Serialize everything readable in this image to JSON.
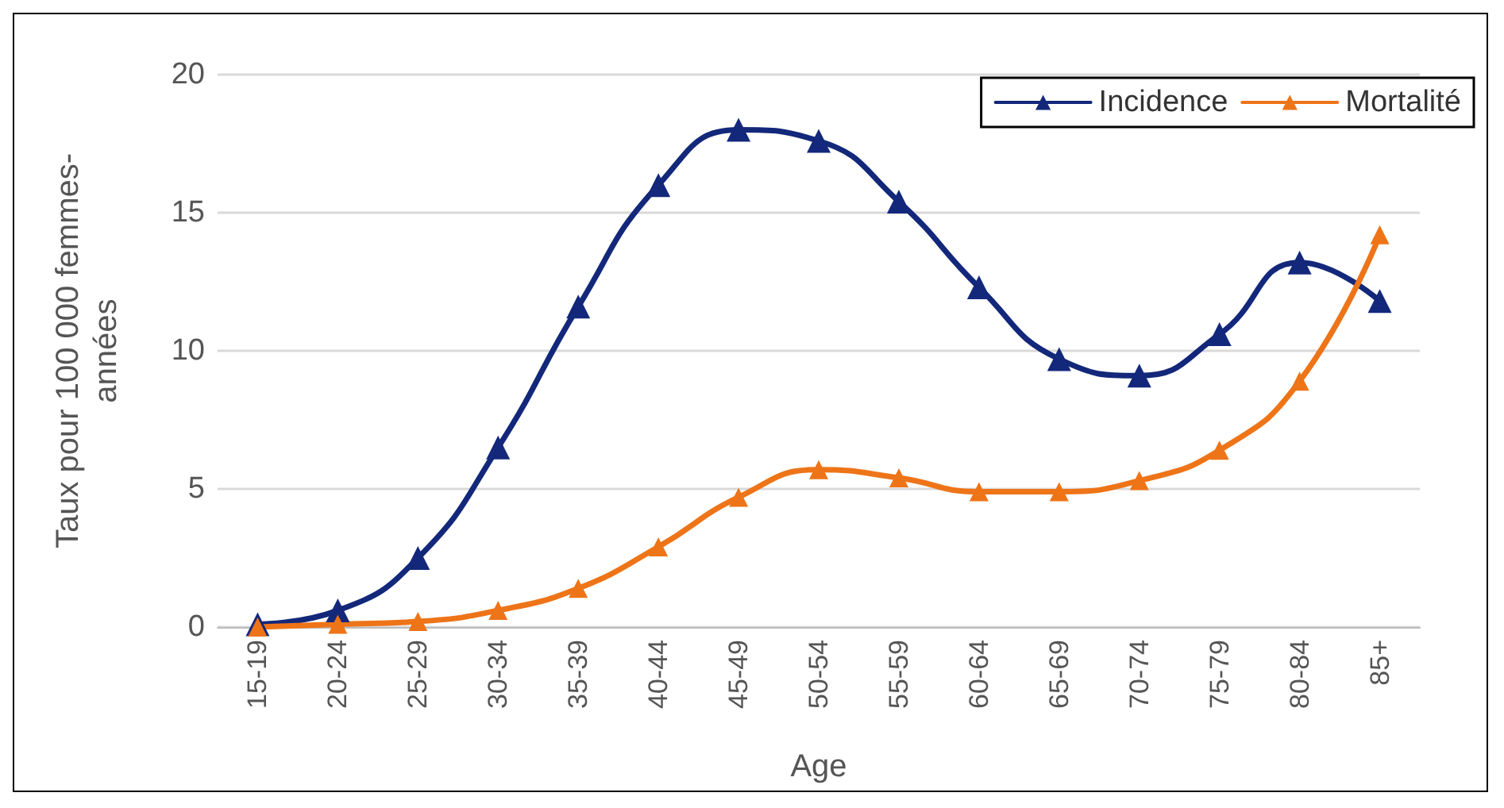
{
  "chart_data": {
    "type": "line",
    "xlabel": "Age",
    "ylabel": "Taux pour 100 000 femmes-années",
    "categories": [
      "15-19",
      "20-24",
      "25-29",
      "30-34",
      "35-39",
      "40-44",
      "45-49",
      "50-54",
      "55-59",
      "60-64",
      "65-69",
      "70-74",
      "75-79",
      "80-84",
      "85+"
    ],
    "series": [
      {
        "name": "Incidence",
        "color": "#13287a",
        "values": [
          0.1,
          0.6,
          2.5,
          6.5,
          11.6,
          16.0,
          18.0,
          17.6,
          15.4,
          12.3,
          9.7,
          9.1,
          10.6,
          13.2,
          11.8
        ]
      },
      {
        "name": "Mortalité",
        "color": "#ee7418",
        "values": [
          0.0,
          0.1,
          0.2,
          0.6,
          1.4,
          2.9,
          4.7,
          5.7,
          5.4,
          4.9,
          4.9,
          5.3,
          6.4,
          8.9,
          14.2
        ]
      }
    ],
    "ylim": [
      0,
      20
    ],
    "yticks": [
      0,
      5,
      10,
      15,
      20
    ],
    "grid": "y",
    "legend": "top right",
    "marker": "triangle",
    "line_style": "solid"
  }
}
